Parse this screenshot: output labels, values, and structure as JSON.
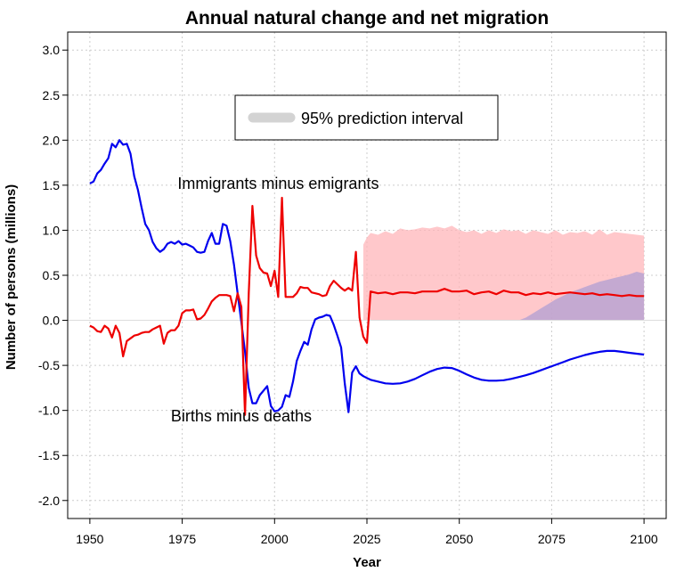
{
  "chart_data": {
    "type": "line",
    "title": "Annual natural change and net migration",
    "xlabel": "Year",
    "ylabel": "Number of persons (millions)",
    "xlim": [
      1944,
      2106
    ],
    "ylim": [
      -2.2,
      3.2
    ],
    "x_ticks": [
      1950,
      1975,
      2000,
      2025,
      2050,
      2075,
      2100
    ],
    "y_ticks": [
      -2.0,
      -1.5,
      -1.0,
      -0.5,
      0.0,
      0.5,
      1.0,
      1.5,
      2.0,
      2.5,
      3.0
    ],
    "grid": true,
    "legend": {
      "position": "top-center",
      "label": "95% prediction interval",
      "color": "#d3d3d3"
    },
    "annotations": [
      {
        "text": "Immigrants minus emigrants",
        "x": 2001,
        "y": 1.46
      },
      {
        "text": "Births minus deaths",
        "x": 1991,
        "y": -1.12
      }
    ],
    "series": [
      {
        "name": "Births minus deaths",
        "color": "#0000ee",
        "x": [
          1950,
          1951,
          1952,
          1953,
          1954,
          1955,
          1956,
          1957,
          1958,
          1959,
          1960,
          1961,
          1962,
          1963,
          1964,
          1965,
          1966,
          1967,
          1968,
          1969,
          1970,
          1971,
          1972,
          1973,
          1974,
          1975,
          1976,
          1977,
          1978,
          1979,
          1980,
          1981,
          1982,
          1983,
          1984,
          1985,
          1986,
          1987,
          1988,
          1989,
          1990,
          1991,
          1992,
          1993,
          1994,
          1995,
          1996,
          1997,
          1998,
          1999,
          2000,
          2001,
          2002,
          2003,
          2004,
          2005,
          2006,
          2007,
          2008,
          2009,
          2010,
          2011,
          2012,
          2013,
          2014,
          2015,
          2016,
          2017,
          2018,
          2019,
          2020,
          2021,
          2022,
          2023,
          2024,
          2025,
          2026,
          2028,
          2030,
          2032,
          2034,
          2036,
          2038,
          2040,
          2042,
          2044,
          2046,
          2048,
          2050,
          2052,
          2054,
          2056,
          2058,
          2060,
          2062,
          2064,
          2066,
          2068,
          2070,
          2072,
          2074,
          2076,
          2078,
          2080,
          2082,
          2084,
          2086,
          2088,
          2090,
          2092,
          2094,
          2096,
          2098,
          2100
        ],
        "values": [
          1.52,
          1.54,
          1.63,
          1.67,
          1.74,
          1.8,
          1.96,
          1.92,
          2.0,
          1.95,
          1.96,
          1.85,
          1.6,
          1.45,
          1.25,
          1.07,
          1.0,
          0.87,
          0.8,
          0.76,
          0.79,
          0.85,
          0.87,
          0.85,
          0.88,
          0.84,
          0.85,
          0.83,
          0.81,
          0.76,
          0.75,
          0.76,
          0.88,
          0.97,
          0.85,
          0.85,
          1.07,
          1.05,
          0.88,
          0.62,
          0.3,
          -0.02,
          -0.35,
          -0.75,
          -0.92,
          -0.92,
          -0.83,
          -0.78,
          -0.73,
          -0.95,
          -1.01,
          -1.0,
          -0.96,
          -0.83,
          -0.85,
          -0.68,
          -0.45,
          -0.34,
          -0.24,
          -0.27,
          -0.1,
          0.01,
          0.03,
          0.04,
          0.06,
          0.05,
          -0.05,
          -0.17,
          -0.3,
          -0.7,
          -1.02,
          -0.58,
          -0.51,
          -0.59,
          -0.62,
          -0.64,
          -0.66,
          -0.68,
          -0.7,
          -0.705,
          -0.7,
          -0.68,
          -0.65,
          -0.61,
          -0.57,
          -0.54,
          -0.525,
          -0.53,
          -0.56,
          -0.6,
          -0.635,
          -0.66,
          -0.67,
          -0.67,
          -0.665,
          -0.65,
          -0.63,
          -0.61,
          -0.585,
          -0.555,
          -0.525,
          -0.495,
          -0.465,
          -0.435,
          -0.41,
          -0.385,
          -0.365,
          -0.35,
          -0.34,
          -0.34,
          -0.35,
          -0.36,
          -0.37,
          -0.38
        ]
      },
      {
        "name": "Immigrants minus emigrants",
        "color": "#ee0000",
        "x": [
          1950,
          1951,
          1952,
          1953,
          1954,
          1955,
          1956,
          1957,
          1958,
          1959,
          1960,
          1961,
          1962,
          1963,
          1964,
          1965,
          1966,
          1967,
          1968,
          1969,
          1970,
          1971,
          1972,
          1973,
          1974,
          1975,
          1976,
          1977,
          1978,
          1979,
          1980,
          1981,
          1982,
          1983,
          1984,
          1985,
          1986,
          1987,
          1988,
          1989,
          1990,
          1991,
          1992,
          1993,
          1994,
          1995,
          1996,
          1997,
          1998,
          1999,
          2000,
          2001,
          2002,
          2003,
          2004,
          2005,
          2006,
          2007,
          2008,
          2009,
          2010,
          2011,
          2012,
          2013,
          2014,
          2015,
          2016,
          2017,
          2018,
          2019,
          2020,
          2021,
          2022,
          2023,
          2024,
          2025,
          2026,
          2028,
          2030,
          2032,
          2034,
          2036,
          2038,
          2040,
          2042,
          2044,
          2046,
          2048,
          2050,
          2052,
          2054,
          2056,
          2058,
          2060,
          2062,
          2064,
          2066,
          2068,
          2070,
          2072,
          2074,
          2076,
          2078,
          2080,
          2082,
          2084,
          2086,
          2088,
          2090,
          2092,
          2094,
          2096,
          2098,
          2100
        ],
        "values": [
          -0.06,
          -0.08,
          -0.12,
          -0.13,
          -0.06,
          -0.09,
          -0.19,
          -0.06,
          -0.14,
          -0.4,
          -0.23,
          -0.2,
          -0.17,
          -0.16,
          -0.14,
          -0.13,
          -0.13,
          -0.1,
          -0.08,
          -0.06,
          -0.26,
          -0.14,
          -0.11,
          -0.11,
          -0.06,
          0.08,
          0.11,
          0.11,
          0.12,
          0.01,
          0.02,
          0.06,
          0.13,
          0.21,
          0.25,
          0.28,
          0.28,
          0.28,
          0.27,
          0.1,
          0.3,
          0.15,
          -1.05,
          0.3,
          1.27,
          0.72,
          0.58,
          0.53,
          0.52,
          0.38,
          0.55,
          0.26,
          1.36,
          0.26,
          0.26,
          0.26,
          0.3,
          0.37,
          0.36,
          0.36,
          0.31,
          0.3,
          0.29,
          0.27,
          0.28,
          0.38,
          0.44,
          0.4,
          0.36,
          0.33,
          0.36,
          0.33,
          0.76,
          0.03,
          -0.18,
          -0.25,
          0.32,
          0.3,
          0.31,
          0.29,
          0.31,
          0.31,
          0.3,
          0.32,
          0.32,
          0.32,
          0.35,
          0.32,
          0.32,
          0.33,
          0.29,
          0.31,
          0.32,
          0.29,
          0.33,
          0.31,
          0.31,
          0.28,
          0.3,
          0.29,
          0.31,
          0.29,
          0.3,
          0.31,
          0.3,
          0.29,
          0.3,
          0.28,
          0.29,
          0.28,
          0.27,
          0.28,
          0.27,
          0.27
        ]
      }
    ],
    "bands": [
      {
        "color": "#ffb6b9",
        "x": [
          2024,
          2025,
          2026,
          2028,
          2030,
          2032,
          2034,
          2036,
          2038,
          2040,
          2042,
          2044,
          2046,
          2048,
          2050,
          2052,
          2054,
          2056,
          2058,
          2060,
          2062,
          2064,
          2066,
          2068,
          2070,
          2072,
          2074,
          2076,
          2078,
          2080,
          2082,
          2084,
          2086,
          2088,
          2090,
          2092,
          2094,
          2096,
          2098,
          2100
        ],
        "upper": [
          0.84,
          0.92,
          0.97,
          0.95,
          0.99,
          0.96,
          1.02,
          1.0,
          1.01,
          1.03,
          1.02,
          1.04,
          1.02,
          1.05,
          1.0,
          0.98,
          1.0,
          0.96,
          1.0,
          0.97,
          1.01,
          0.99,
          1.0,
          0.96,
          1.0,
          0.98,
          0.96,
          1.0,
          0.95,
          0.98,
          0.97,
          0.99,
          0.95,
          1.01,
          0.95,
          0.98,
          0.97,
          0.96,
          0.95,
          0.94
        ],
        "lower": [
          0.0,
          0.0,
          0.0,
          0.0,
          0.0,
          0.0,
          0.0,
          0.0,
          0.0,
          0.0,
          0.0,
          0.0,
          0.0,
          0.0,
          0.0,
          0.0,
          0.0,
          0.0,
          0.0,
          0.0,
          0.0,
          0.0,
          0.0,
          0.0,
          0.0,
          0.0,
          0.0,
          0.0,
          0.0,
          0.0,
          0.0,
          0.0,
          0.0,
          0.0,
          0.0,
          0.0,
          0.0,
          0.0,
          0.0,
          0.0
        ]
      },
      {
        "color": "#b09fd3",
        "x": [
          2066,
          2068,
          2070,
          2072,
          2074,
          2076,
          2078,
          2080,
          2082,
          2084,
          2086,
          2088,
          2090,
          2092,
          2094,
          2096,
          2098,
          2100
        ],
        "upper": [
          0.0,
          0.03,
          0.08,
          0.13,
          0.18,
          0.23,
          0.27,
          0.31,
          0.34,
          0.37,
          0.4,
          0.43,
          0.45,
          0.47,
          0.49,
          0.51,
          0.54,
          0.52
        ],
        "lower": [
          0.0,
          0.0,
          0.0,
          0.0,
          0.0,
          0.0,
          0.0,
          0.0,
          0.0,
          0.0,
          0.0,
          0.0,
          0.0,
          0.0,
          0.0,
          0.0,
          0.0,
          0.0
        ]
      }
    ]
  }
}
